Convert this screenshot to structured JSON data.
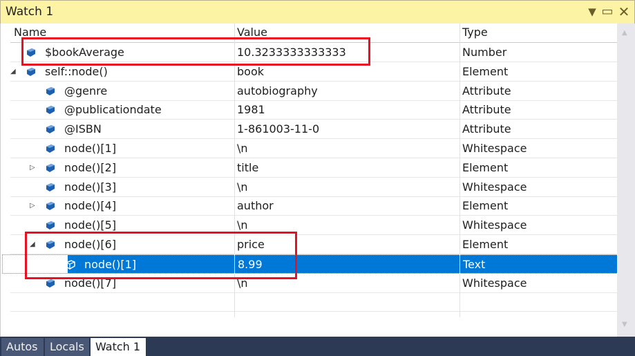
{
  "window": {
    "title": "Watch 1",
    "buttons": [
      "dropdown-icon",
      "maximize-icon",
      "close-icon"
    ]
  },
  "columns": [
    "Name",
    "Value",
    "Type"
  ],
  "rows": [
    {
      "name": "$bookAverage",
      "value": "10.3233333333333",
      "type": "Number",
      "level": 0,
      "expander": "none"
    },
    {
      "name": "self::node()",
      "value": "book",
      "type": "Element",
      "level": 0,
      "expander": "expanded"
    },
    {
      "name": "@genre",
      "value": "autobiography",
      "type": "Attribute",
      "level": 1,
      "expander": "none"
    },
    {
      "name": "@publicationdate",
      "value": "1981",
      "type": "Attribute",
      "level": 1,
      "expander": "none"
    },
    {
      "name": "@ISBN",
      "value": "1-861003-11-0",
      "type": "Attribute",
      "level": 1,
      "expander": "none"
    },
    {
      "name": "node()[1]",
      "value": "\\n",
      "type": "Whitespace",
      "level": 1,
      "expander": "none"
    },
    {
      "name": "node()[2]",
      "value": "title",
      "type": "Element",
      "level": 1,
      "expander": "collapsed"
    },
    {
      "name": "node()[3]",
      "value": "\\n",
      "type": "Whitespace",
      "level": 1,
      "expander": "none"
    },
    {
      "name": "node()[4]",
      "value": "author",
      "type": "Element",
      "level": 1,
      "expander": "collapsed"
    },
    {
      "name": "node()[5]",
      "value": "\\n",
      "type": "Whitespace",
      "level": 1,
      "expander": "none"
    },
    {
      "name": "node()[6]",
      "value": "price",
      "type": "Element",
      "level": 1,
      "expander": "expanded"
    },
    {
      "name": "node()[1]",
      "value": "8.99",
      "type": "Text",
      "level": 2,
      "expander": "none",
      "selected": true
    },
    {
      "name": "node()[7]",
      "value": "\\n",
      "type": "Whitespace",
      "level": 1,
      "expander": "none"
    }
  ],
  "tabs": [
    {
      "label": "Autos"
    },
    {
      "label": "Locals"
    },
    {
      "label": "Watch 1",
      "active": true
    }
  ],
  "colors": {
    "titlebar": "#fdf3a5",
    "selection": "#0078d7",
    "highlight": "#e81123",
    "tabbar": "#2d3a55"
  }
}
